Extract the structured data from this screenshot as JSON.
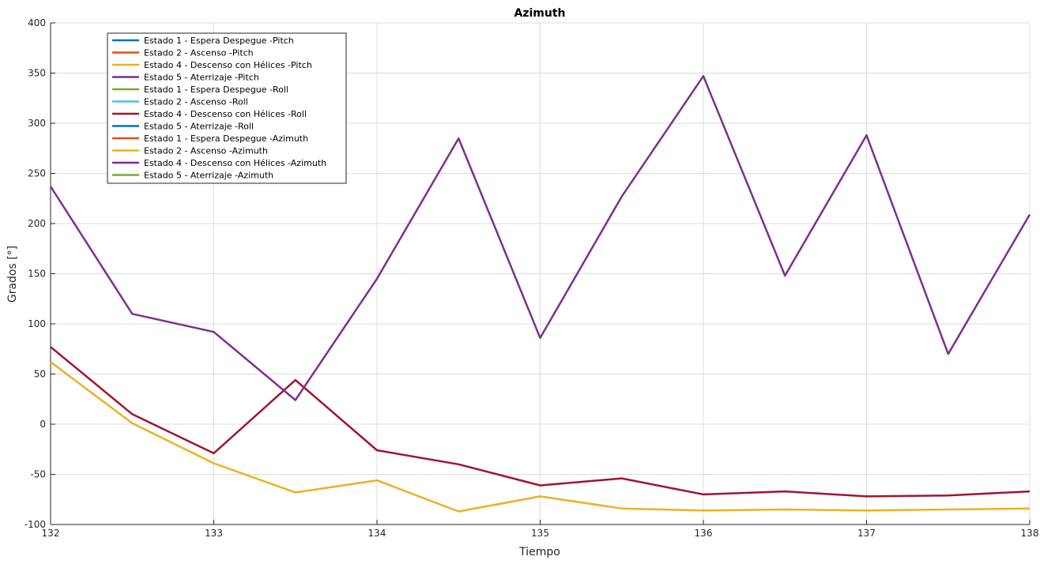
{
  "chart_data": {
    "type": "line",
    "title": "Azimuth",
    "xlabel": "Tiempo",
    "ylabel": "Grados [°]",
    "xlim": [
      132,
      138
    ],
    "ylim": [
      -100,
      400
    ],
    "xticks": [
      132,
      133,
      134,
      135,
      136,
      137,
      138
    ],
    "yticks": [
      -100,
      -50,
      0,
      50,
      100,
      150,
      200,
      250,
      300,
      350,
      400
    ],
    "grid": true,
    "legend_position": "top-left",
    "legend": [
      {
        "name": "Estado 1 - Espera Despegue -Pitch",
        "color": "#0072bd"
      },
      {
        "name": "Estado 2 - Ascenso -Pitch",
        "color": "#d95319"
      },
      {
        "name": "Estado 4 - Descenso con Hélices -Pitch",
        "color": "#edb120"
      },
      {
        "name": "Estado 5 - Aterrizaje -Pitch",
        "color": "#7e2f8e"
      },
      {
        "name": "Estado 1 - Espera Despegue -Roll",
        "color": "#77ac30"
      },
      {
        "name": "Estado 2 - Ascenso -Roll",
        "color": "#4dbeee"
      },
      {
        "name": "Estado 4 - Descenso con Hélices -Roll",
        "color": "#a2142f"
      },
      {
        "name": "Estado 5 - Aterrizaje -Roll",
        "color": "#0072bd"
      },
      {
        "name": "Estado 1 - Espera Despegue -Azimuth",
        "color": "#d95319"
      },
      {
        "name": "Estado 2 - Ascenso -Azimuth",
        "color": "#edb120"
      },
      {
        "name": "Estado 4 - Descenso con Hélices -Azimuth",
        "color": "#7e2f8e"
      },
      {
        "name": "Estado 5 - Aterrizaje -Azimuth",
        "color": "#77ac30"
      }
    ],
    "series": [
      {
        "color": "#edb120",
        "x": [
          132,
          132.5,
          133,
          133.5,
          134,
          134.5,
          135,
          135.5,
          136,
          136.5,
          137,
          137.5,
          138
        ],
        "y": [
          62,
          1,
          -39,
          -68,
          -56,
          -87,
          -72,
          -84,
          -86,
          -85,
          -86,
          -85,
          -84
        ]
      },
      {
        "color": "#a2142f",
        "x": [
          132,
          132.5,
          133,
          133.5,
          134,
          134.5,
          135,
          135.5,
          136,
          136.5,
          137,
          137.5,
          138
        ],
        "y": [
          77,
          10,
          -29,
          44,
          -26,
          -40,
          -61,
          -54,
          -70,
          -67,
          -72,
          -71,
          -67
        ]
      },
      {
        "color": "#7e2f8e",
        "x": [
          132,
          132.5,
          133,
          133.5,
          134,
          134.5,
          135,
          135.5,
          136,
          136.5,
          137,
          137.5,
          138
        ],
        "y": [
          237,
          110,
          92,
          24,
          145,
          285,
          86,
          227,
          347,
          148,
          288,
          70,
          209
        ]
      }
    ]
  }
}
